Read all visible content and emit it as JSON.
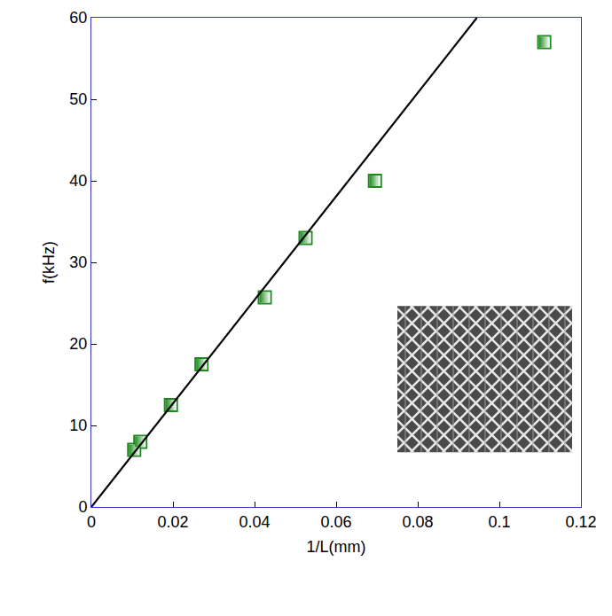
{
  "chart_data": {
    "type": "scatter",
    "xlabel": "1/L(mm)",
    "ylabel": "f(kHz)",
    "xlim": [
      0,
      0.12
    ],
    "ylim": [
      0,
      60
    ],
    "xticks": [
      0,
      0.02,
      0.04,
      0.06,
      0.08,
      0.1,
      0.12
    ],
    "yticks": [
      0,
      10,
      20,
      30,
      40,
      50,
      60
    ],
    "grid": false,
    "series": [
      {
        "type": "scatter",
        "color": "#1e8a1e",
        "marker": "half-filled square",
        "x": [
          0.0105,
          0.012,
          0.0195,
          0.027,
          0.0425,
          0.0525,
          0.0695,
          0.111
        ],
        "values": [
          7,
          8,
          12.5,
          17.5,
          25.7,
          33,
          40,
          57
        ]
      },
      {
        "type": "line",
        "color": "#000000",
        "line_style": "solid",
        "x": [
          0,
          0.0945
        ],
        "values": [
          0,
          60
        ]
      }
    ]
  }
}
